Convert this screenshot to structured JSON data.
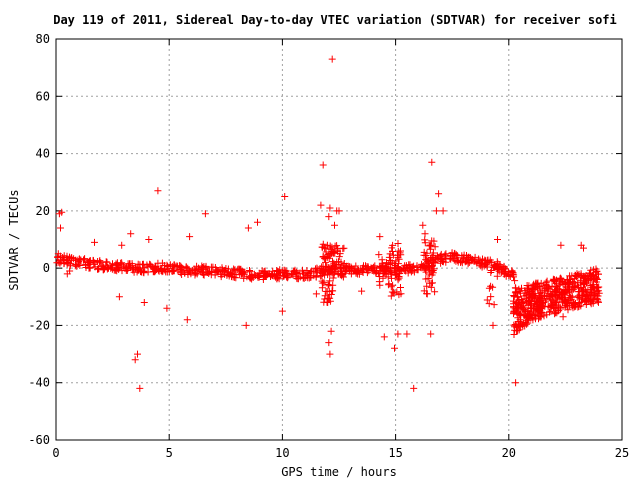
{
  "chart_data": {
    "type": "scatter",
    "title": "Day 119 of 2011, Sidereal Day-to-day VTEC variation (SDTVAR) for receiver sofi",
    "xlabel": "GPS time / hours",
    "ylabel": "SDTVAR / TECUs",
    "xlim": [
      0,
      25
    ],
    "ylim": [
      -60,
      80
    ],
    "xticks": [
      0,
      5,
      10,
      15,
      20,
      25
    ],
    "yticks": [
      -60,
      -40,
      -20,
      0,
      20,
      40,
      60,
      80
    ],
    "grid": true,
    "marker": "+",
    "color": "#ff0000",
    "series": [
      {
        "name": "SDTVAR",
        "points": [
          [
            0.1,
            5
          ],
          [
            0.15,
            19
          ],
          [
            0.25,
            19.5
          ],
          [
            0.2,
            14
          ],
          [
            0.5,
            -2
          ],
          [
            0.6,
            -1
          ],
          [
            1.7,
            9
          ],
          [
            2.9,
            8
          ],
          [
            2.8,
            -10
          ],
          [
            3.3,
            12
          ],
          [
            3.5,
            -32
          ],
          [
            3.6,
            -30
          ],
          [
            3.7,
            -42
          ],
          [
            3.9,
            -12
          ],
          [
            4.1,
            10
          ],
          [
            4.5,
            27
          ],
          [
            4.9,
            -14
          ],
          [
            5.8,
            -18
          ],
          [
            5.9,
            11
          ],
          [
            6.6,
            19
          ],
          [
            7.1,
            -1
          ],
          [
            8.4,
            -20
          ],
          [
            8.5,
            14
          ],
          [
            8.9,
            16
          ],
          [
            10.1,
            25
          ],
          [
            10.0,
            -15
          ],
          [
            11.5,
            -9
          ],
          [
            11.7,
            22
          ],
          [
            11.8,
            36
          ],
          [
            12.0,
            -12
          ],
          [
            12.05,
            18
          ],
          [
            12.1,
            21
          ],
          [
            12.2,
            73
          ],
          [
            12.1,
            -30
          ],
          [
            12.05,
            -26
          ],
          [
            12.15,
            -22
          ],
          [
            12.3,
            15
          ],
          [
            12.4,
            20
          ],
          [
            12.5,
            20
          ],
          [
            13.5,
            -8
          ],
          [
            14.3,
            11
          ],
          [
            14.5,
            -24
          ],
          [
            14.95,
            -28
          ],
          [
            15.1,
            -23
          ],
          [
            15.5,
            -23
          ],
          [
            15.8,
            -42
          ],
          [
            16.2,
            15
          ],
          [
            16.55,
            -23
          ],
          [
            16.6,
            37
          ],
          [
            16.9,
            26
          ],
          [
            16.8,
            20
          ],
          [
            16.4,
            -9
          ],
          [
            16.3,
            12
          ],
          [
            17.1,
            20
          ],
          [
            19.3,
            -20
          ],
          [
            19.5,
            10
          ],
          [
            20.3,
            -40
          ],
          [
            22.3,
            8
          ],
          [
            22.4,
            -17
          ],
          [
            23.2,
            8
          ],
          [
            23.3,
            7
          ]
        ],
        "band": [
          [
            0,
            3.5
          ],
          [
            0.5,
            2.6
          ],
          [
            1,
            2
          ],
          [
            1.5,
            1.5
          ],
          [
            2,
            1
          ],
          [
            2.5,
            0.5
          ],
          [
            3,
            0.6
          ],
          [
            3.5,
            0.1
          ],
          [
            4,
            -0.3
          ],
          [
            4.5,
            0.4
          ],
          [
            5,
            0
          ],
          [
            5.5,
            -0.7
          ],
          [
            6,
            -0.9
          ],
          [
            6.5,
            -0.8
          ],
          [
            7,
            -1.3
          ],
          [
            7.5,
            -1.5
          ],
          [
            8,
            -1.8
          ],
          [
            8.5,
            -2.2
          ],
          [
            9,
            -2.5
          ],
          [
            9.5,
            -2.4
          ],
          [
            10,
            -2
          ],
          [
            10.5,
            -2.3
          ],
          [
            11,
            -2.2
          ],
          [
            11.5,
            -1.5
          ],
          [
            12,
            -0.6
          ],
          [
            12.5,
            0
          ],
          [
            13,
            -0.6
          ],
          [
            13.5,
            -0.8
          ],
          [
            14,
            -0.5
          ],
          [
            14.5,
            -0.5
          ],
          [
            15,
            -1
          ],
          [
            15.5,
            -0.4
          ],
          [
            16,
            0.4
          ],
          [
            16.5,
            1.8
          ],
          [
            17,
            3.2
          ],
          [
            17.5,
            3.8
          ],
          [
            18,
            3.4
          ],
          [
            18.5,
            2.5
          ],
          [
            19,
            1.6
          ],
          [
            19.5,
            0.8
          ],
          [
            20,
            -2
          ],
          [
            20.3,
            -3
          ]
        ],
        "band_spread": 1.6,
        "clusters": [
          {
            "x": 12.0,
            "ymin": -12,
            "ymax": 9,
            "count": 60
          },
          {
            "x": 12.5,
            "ymin": -7,
            "ymax": 8,
            "count": 30
          },
          {
            "x": 15.0,
            "ymin": -10,
            "ymax": 9,
            "count": 40
          },
          {
            "x": 16.5,
            "ymin": -9,
            "ymax": 10,
            "count": 40
          },
          {
            "x": 14.5,
            "ymin": -6,
            "ymax": 5,
            "count": 20
          },
          {
            "x": 19.3,
            "ymin": -13,
            "ymax": 1,
            "count": 15
          }
        ],
        "tail_region": {
          "x_start": 20.2,
          "x_end": 24,
          "lower_start": -25,
          "lower_end": -12,
          "upper_start": -7,
          "upper_end": 0,
          "count": 520
        }
      }
    ]
  }
}
